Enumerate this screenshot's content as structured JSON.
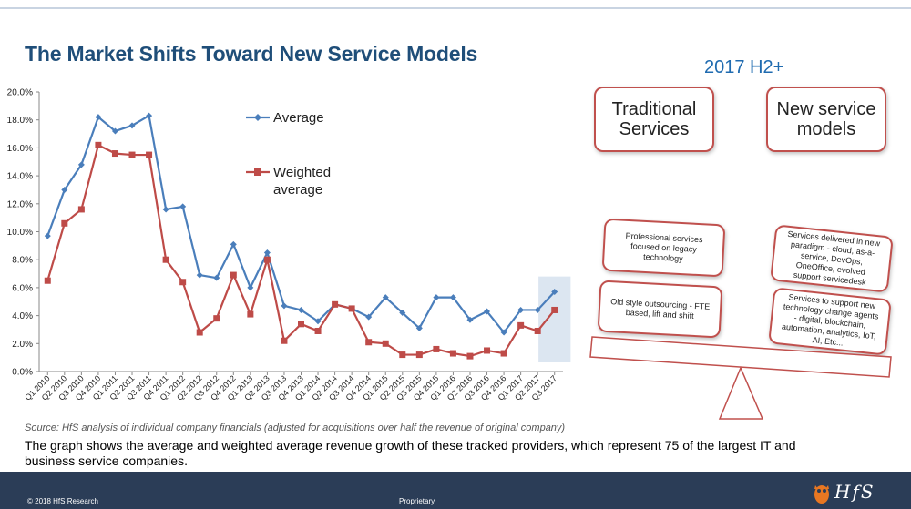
{
  "title": "The Market Shifts Toward New Service Models",
  "h2_label": "2017 H2+",
  "boxes": {
    "traditional": "Traditional Services",
    "new_models": "New service models",
    "professional": "Professional services focused on legacy technology",
    "outsourcing": "Old style outsourcing - FTE based, lift and shift",
    "delivered": "Services delivered in new paradigm - cloud, as-a-service, DevOps, OneOffice, evolved support servicedesk",
    "support": "Services to support new technology change agents - digital, blockchain, automation, analytics, IoT, AI, Etc..."
  },
  "source": "Source: HfS analysis of individual company financials (adjusted for acquisitions over half the revenue of original company)",
  "caption": "The graph shows the average and weighted average revenue growth of these tracked providers, which represent 75 of the largest IT and business service companies.",
  "footer": {
    "copyright": "© 2018 HfS Research",
    "proprietary": "Proprietary",
    "logo_text": "HfS"
  },
  "colors": {
    "average": "#4a7ebb",
    "weighted": "#be4b48",
    "title": "#1f4e79",
    "highlight": "#dce6f1",
    "footer": "#2b3d57"
  },
  "chart_data": {
    "type": "line",
    "categories": [
      "Q1 2010",
      "Q2 2010",
      "Q3 2010",
      "Q4 2010",
      "Q1 2011",
      "Q2 2011",
      "Q3 2011",
      "Q4 2011",
      "Q1 2012",
      "Q2 2012",
      "Q3 2012",
      "Q4 2012",
      "Q1 2013",
      "Q2 2013",
      "Q3 2013",
      "Q4 2013",
      "Q1 2014",
      "Q2 2014",
      "Q3 2014",
      "Q4 2014",
      "Q1 2015",
      "Q2 2015",
      "Q3 2015",
      "Q4 2015",
      "Q1 2016",
      "Q2 2016",
      "Q3 2016",
      "Q4 2016",
      "Q1 2017",
      "Q2 2017",
      "Q3 2017"
    ],
    "series": [
      {
        "name": "Average",
        "marker": "diamond",
        "values": [
          9.7,
          13.0,
          14.8,
          18.2,
          17.2,
          17.6,
          18.3,
          11.6,
          11.8,
          6.9,
          6.7,
          9.1,
          6.0,
          8.5,
          4.7,
          4.4,
          3.6,
          4.8,
          4.5,
          3.9,
          5.3,
          4.2,
          3.1,
          5.3,
          5.3,
          3.7,
          4.3,
          2.8,
          4.4,
          4.4,
          5.7
        ]
      },
      {
        "name": "Weighted average",
        "marker": "square",
        "values": [
          6.5,
          10.6,
          11.6,
          16.2,
          15.6,
          15.5,
          15.5,
          8.0,
          6.4,
          2.8,
          3.8,
          6.9,
          4.1,
          8.0,
          2.2,
          3.4,
          2.9,
          4.8,
          4.5,
          2.1,
          2.0,
          1.2,
          1.2,
          1.6,
          1.3,
          1.1,
          1.5,
          1.3,
          3.3,
          2.9,
          4.4
        ]
      }
    ],
    "ylim": [
      0,
      20
    ],
    "yticks": [
      "0.0%",
      "2.0%",
      "4.0%",
      "6.0%",
      "8.0%",
      "10.0%",
      "12.0%",
      "14.0%",
      "16.0%",
      "18.0%",
      "20.0%"
    ],
    "y_unit": "%",
    "legend_position": "top-center",
    "grid": false,
    "highlight_category": "Q3 2017"
  }
}
